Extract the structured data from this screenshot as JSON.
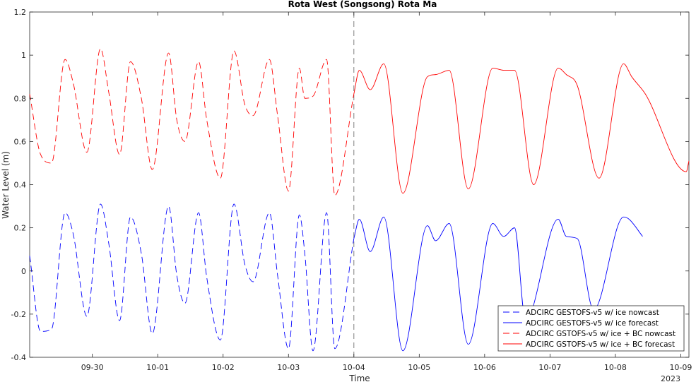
{
  "chart_data": {
    "type": "line",
    "title": "Rota West (Songsong) Rota Ma",
    "xlabel": "Time",
    "ylabel": "Water Level (m)",
    "year_label": "2023",
    "ylim": [
      -0.4,
      1.2
    ],
    "yticks": [
      -0.4,
      -0.2,
      0,
      0.2,
      0.4,
      0.6,
      0.8,
      1,
      1.2
    ],
    "ytick_labels": [
      "-0.4",
      "-0.2",
      "0",
      "0.2",
      "0.4",
      "0.6",
      "0.8",
      "1",
      "1.2"
    ],
    "xlim": [
      "2023-09-29T01:00",
      "2023-10-09T03:00"
    ],
    "xticks": [
      "2023-09-30",
      "2023-10-01",
      "2023-10-02",
      "2023-10-03",
      "2023-10-04",
      "2023-10-05",
      "2023-10-06",
      "2023-10-07",
      "2023-10-08",
      "2023-10-09"
    ],
    "xtick_labels": [
      "09-30",
      "10-01",
      "10-02",
      "10-03",
      "10-04",
      "10-05",
      "10-06",
      "10-07",
      "10-08",
      "10-09"
    ],
    "nowcast_forecast_divider": "2023-10-04T00:00",
    "grid": false,
    "legend_position": "bottom-right",
    "series": [
      {
        "name": "ADCIRC GESTOFS-v5 w/ ice nowcast",
        "color": "#0000ff",
        "style": "dashed",
        "x": [
          "2023-09-29T01:00",
          "2023-09-29T05:00",
          "2023-09-29T09:00",
          "2023-09-29T14:00",
          "2023-09-29T17:00",
          "2023-09-29T22:00",
          "2023-09-30T03:00",
          "2023-09-30T06:00",
          "2023-09-30T10:00",
          "2023-09-30T14:00",
          "2023-09-30T18:00",
          "2023-09-30T22:00",
          "2023-10-01T04:00",
          "2023-10-01T07:00",
          "2023-10-01T10:00",
          "2023-10-01T15:00",
          "2023-10-01T18:00",
          "2023-10-01T23:00",
          "2023-10-02T04:00",
          "2023-10-02T08:00",
          "2023-10-02T11:00",
          "2023-10-02T17:00",
          "2023-10-02T20:00",
          "2023-10-03T00:00",
          "2023-10-03T04:00",
          "2023-10-03T06:00",
          "2023-10-03T09:00",
          "2023-10-03T14:00",
          "2023-10-03T17:00",
          "2023-10-04T00:00"
        ],
        "y": [
          0.07,
          -0.28,
          -0.27,
          0.27,
          0.17,
          -0.21,
          0.31,
          0.13,
          -0.23,
          0.25,
          0.08,
          -0.29,
          0.3,
          -0.02,
          -0.15,
          0.27,
          -0.03,
          -0.32,
          0.31,
          0.03,
          -0.05,
          0.27,
          -0.02,
          -0.36,
          0.26,
          0.08,
          -0.37,
          0.27,
          -0.36,
          0.15
        ]
      },
      {
        "name": "ADCIRC GESTOFS-v5 w/ ice forecast",
        "color": "#0000ff",
        "style": "solid",
        "x": [
          "2023-10-04T00:00",
          "2023-10-04T02:00",
          "2023-10-04T06:00",
          "2023-10-04T11:00",
          "2023-10-04T18:00",
          "2023-10-05T03:00",
          "2023-10-05T06:00",
          "2023-10-05T11:00",
          "2023-10-05T18:00",
          "2023-10-06T03:00",
          "2023-10-06T07:00",
          "2023-10-06T11:00",
          "2023-10-06T15:00",
          "2023-10-07T03:00",
          "2023-10-07T06:00",
          "2023-10-07T10:00",
          "2023-10-07T16:00",
          "2023-10-08T03:00",
          "2023-10-08T05:00",
          "2023-10-08T10:00"
        ],
        "y": [
          0.15,
          0.24,
          0.09,
          0.25,
          -0.37,
          0.21,
          0.14,
          0.22,
          -0.34,
          0.22,
          0.16,
          0.2,
          -0.23,
          0.24,
          0.16,
          0.15,
          -0.18,
          0.25,
          0.24,
          0.16
        ]
      },
      {
        "name": "ADCIRC GSTOFS-v5 w/ ice + BC nowcast",
        "color": "#ff0000",
        "style": "dashed",
        "x": [
          "2023-09-29T01:00",
          "2023-09-29T05:00",
          "2023-09-29T09:00",
          "2023-09-29T14:00",
          "2023-09-29T17:00",
          "2023-09-29T22:00",
          "2023-09-30T03:00",
          "2023-09-30T06:00",
          "2023-09-30T10:00",
          "2023-09-30T14:00",
          "2023-09-30T18:00",
          "2023-09-30T22:00",
          "2023-10-01T04:00",
          "2023-10-01T07:00",
          "2023-10-01T10:00",
          "2023-10-01T15:00",
          "2023-10-01T18:00",
          "2023-10-01T23:00",
          "2023-10-02T04:00",
          "2023-10-02T08:00",
          "2023-10-02T11:00",
          "2023-10-02T17:00",
          "2023-10-02T20:00",
          "2023-10-03T00:00",
          "2023-10-03T04:00",
          "2023-10-03T06:00",
          "2023-10-03T09:00",
          "2023-10-03T14:00",
          "2023-10-03T17:00",
          "2023-10-04T00:00"
        ],
        "y": [
          0.82,
          0.54,
          0.5,
          0.98,
          0.87,
          0.55,
          1.03,
          0.83,
          0.54,
          0.97,
          0.8,
          0.47,
          1.01,
          0.7,
          0.6,
          0.97,
          0.7,
          0.43,
          1.02,
          0.77,
          0.72,
          0.98,
          0.72,
          0.37,
          0.94,
          0.8,
          0.81,
          0.98,
          0.35,
          0.82
        ]
      },
      {
        "name": "ADCIRC GSTOFS-v5 w/ ice + BC forecast",
        "color": "#ff0000",
        "style": "solid",
        "x": [
          "2023-10-04T00:00",
          "2023-10-04T02:00",
          "2023-10-04T06:00",
          "2023-10-04T11:00",
          "2023-10-04T18:00",
          "2023-10-05T03:00",
          "2023-10-05T06:00",
          "2023-10-05T11:00",
          "2023-10-05T18:00",
          "2023-10-06T03:00",
          "2023-10-06T07:00",
          "2023-10-06T11:00",
          "2023-10-06T18:00",
          "2023-10-07T03:00",
          "2023-10-07T06:00",
          "2023-10-07T10:00",
          "2023-10-07T18:00",
          "2023-10-08T03:00",
          "2023-10-08T06:00",
          "2023-10-08T11:00",
          "2023-10-09T02:00",
          "2023-10-09T03:00"
        ],
        "y": [
          0.82,
          0.93,
          0.84,
          0.96,
          0.36,
          0.9,
          0.91,
          0.93,
          0.38,
          0.94,
          0.93,
          0.93,
          0.4,
          0.94,
          0.91,
          0.86,
          0.43,
          0.96,
          0.9,
          0.82,
          0.46,
          0.51
        ]
      }
    ]
  },
  "legend": {
    "entries": [
      "ADCIRC GESTOFS-v5 w/ ice nowcast",
      "ADCIRC GESTOFS-v5 w/ ice forecast",
      "ADCIRC GSTOFS-v5 w/ ice + BC nowcast",
      "ADCIRC GSTOFS-v5 w/ ice + BC forecast"
    ]
  }
}
